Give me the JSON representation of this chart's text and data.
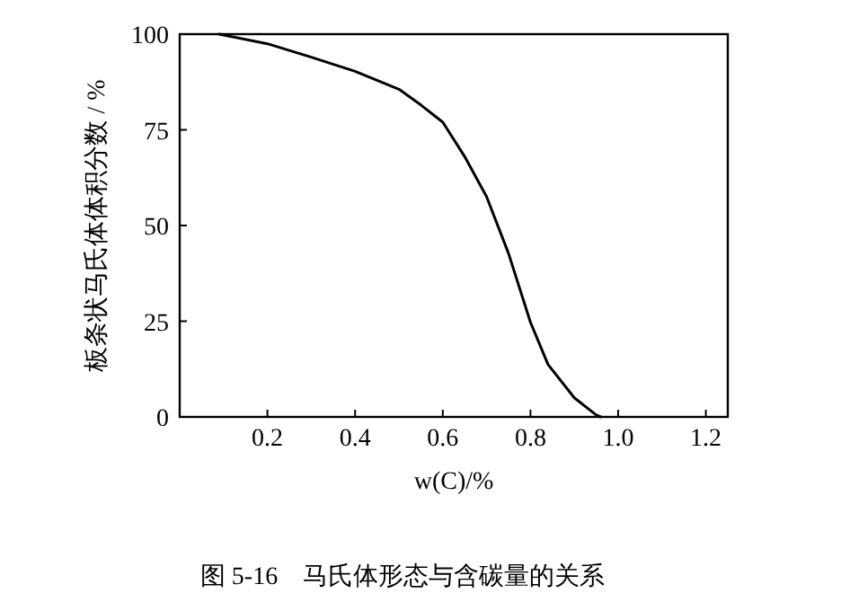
{
  "chart_data": {
    "type": "line",
    "title": "图 5-16　马氏体形态与含碳量的关系",
    "xlabel": "w(C)/%",
    "ylabel": "板条状马氏体体积分数 / %",
    "xlim": [
      0,
      1.25
    ],
    "xticks": [
      0.2,
      0.4,
      0.6,
      0.8,
      {
        "value": 1.0,
        "label": "1.0"
      },
      1.2
    ],
    "ylim": [
      0,
      100
    ],
    "yticks": [
      0,
      25,
      50,
      75,
      100
    ],
    "x": [
      0.09,
      0.2,
      0.3,
      0.4,
      0.5,
      0.55,
      0.6,
      0.65,
      0.7,
      0.75,
      0.8,
      0.84,
      0.9,
      0.95,
      0.96
    ],
    "series": [
      {
        "color": "#000000",
        "values": [
          100,
          97.5,
          94,
          90.3,
          85.6,
          81.5,
          77,
          68,
          57.5,
          42.7,
          24.7,
          13.7,
          5,
          0.5,
          0
        ]
      }
    ],
    "marker": "none",
    "line_style": "solid",
    "grid": false
  }
}
